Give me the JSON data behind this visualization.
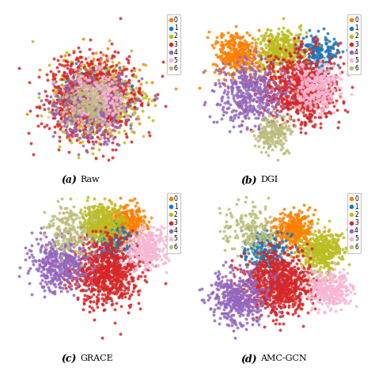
{
  "subplot_labels": [
    "(a)",
    "(b)",
    "(c)",
    "(d)"
  ],
  "subplot_names": [
    "Raw",
    "DGI",
    "GRACE",
    "AMC-GCN"
  ],
  "n_classes": 7,
  "colors": [
    "#ff7f00",
    "#1f77b4",
    "#bcbd22",
    "#d62728",
    "#9467bd",
    "#f7b6d2",
    "#bcbd7a"
  ],
  "legend_labels": [
    "0",
    "1",
    "2",
    "3",
    "4",
    "5",
    "6"
  ],
  "background_color": "#ffffff",
  "class_sizes": [
    351,
    217,
    418,
    818,
    426,
    298,
    180
  ]
}
